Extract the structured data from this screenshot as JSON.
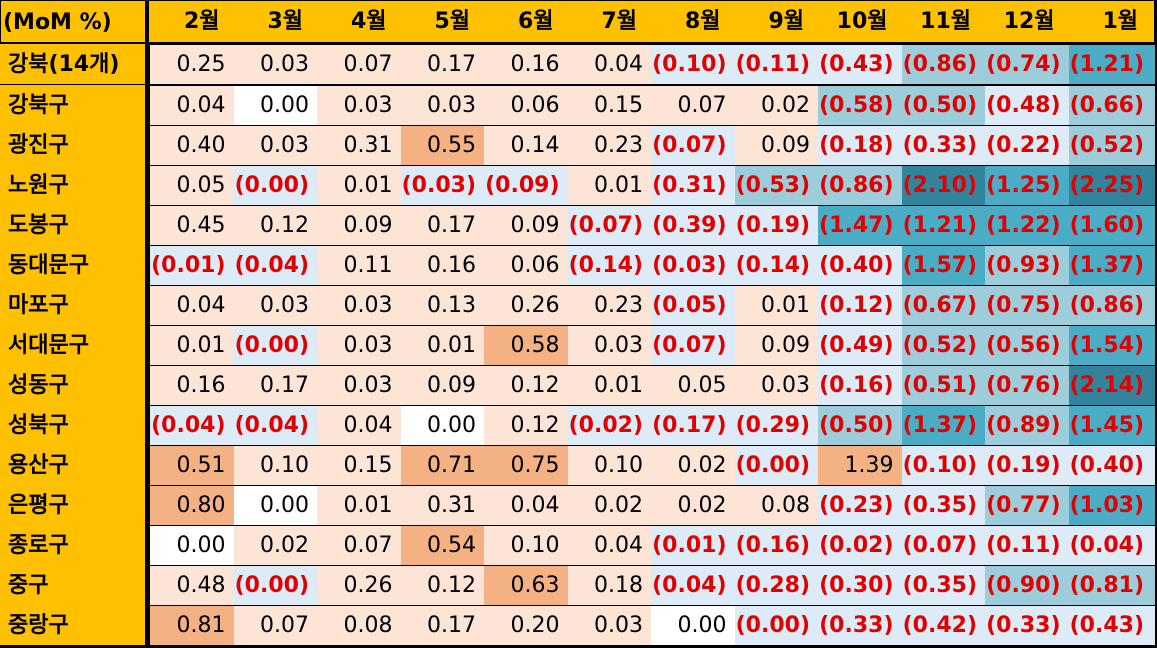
{
  "chart_data": {
    "type": "table",
    "corner_label": "(MoM %)",
    "columns": [
      "2월",
      "3월",
      "4월",
      "5월",
      "6월",
      "7월",
      "8월",
      "9월",
      "10월",
      "11월",
      "12월",
      "1월"
    ],
    "rows": [
      {
        "label": "강북(14개)",
        "cells": [
          {
            "text": "0.25",
            "value": 0.25
          },
          {
            "text": "0.03",
            "value": 0.03
          },
          {
            "text": "0.07",
            "value": 0.07
          },
          {
            "text": "0.17",
            "value": 0.17
          },
          {
            "text": "0.16",
            "value": 0.16
          },
          {
            "text": "0.04",
            "value": 0.04
          },
          {
            "text": "(0.10)",
            "value": -0.1
          },
          {
            "text": "(0.11)",
            "value": -0.11
          },
          {
            "text": "(0.43)",
            "value": -0.43
          },
          {
            "text": "(0.86)",
            "value": -0.86
          },
          {
            "text": "(0.74)",
            "value": -0.74
          },
          {
            "text": "(1.21)",
            "value": -1.21
          }
        ]
      },
      {
        "label": "강북구",
        "cells": [
          {
            "text": "0.04",
            "value": 0.04
          },
          {
            "text": "0.00",
            "value": 0.0
          },
          {
            "text": "0.03",
            "value": 0.03
          },
          {
            "text": "0.03",
            "value": 0.03
          },
          {
            "text": "0.06",
            "value": 0.06
          },
          {
            "text": "0.15",
            "value": 0.15
          },
          {
            "text": "0.07",
            "value": 0.07
          },
          {
            "text": "0.02",
            "value": 0.02
          },
          {
            "text": "(0.58)",
            "value": -0.58
          },
          {
            "text": "(0.50)",
            "value": -0.5
          },
          {
            "text": "(0.48)",
            "value": -0.48
          },
          {
            "text": "(0.66)",
            "value": -0.66
          }
        ]
      },
      {
        "label": "광진구",
        "cells": [
          {
            "text": "0.40",
            "value": 0.4
          },
          {
            "text": "0.03",
            "value": 0.03
          },
          {
            "text": "0.31",
            "value": 0.31
          },
          {
            "text": "0.55",
            "value": 0.55
          },
          {
            "text": "0.14",
            "value": 0.14
          },
          {
            "text": "0.23",
            "value": 0.23
          },
          {
            "text": "(0.07)",
            "value": -0.07
          },
          {
            "text": "0.09",
            "value": 0.09
          },
          {
            "text": "(0.18)",
            "value": -0.18
          },
          {
            "text": "(0.33)",
            "value": -0.33
          },
          {
            "text": "(0.22)",
            "value": -0.22
          },
          {
            "text": "(0.52)",
            "value": -0.52
          }
        ]
      },
      {
        "label": "노원구",
        "cells": [
          {
            "text": "0.05",
            "value": 0.05
          },
          {
            "text": "(0.00)",
            "value": -0.001
          },
          {
            "text": "0.01",
            "value": 0.01
          },
          {
            "text": "(0.03)",
            "value": -0.03
          },
          {
            "text": "(0.09)",
            "value": -0.09
          },
          {
            "text": "0.01",
            "value": 0.01
          },
          {
            "text": "(0.31)",
            "value": -0.31
          },
          {
            "text": "(0.53)",
            "value": -0.53
          },
          {
            "text": "(0.86)",
            "value": -0.86
          },
          {
            "text": "(2.10)",
            "value": -2.1
          },
          {
            "text": "(1.25)",
            "value": -1.25
          },
          {
            "text": "(2.25)",
            "value": -2.25
          }
        ]
      },
      {
        "label": "도봉구",
        "cells": [
          {
            "text": "0.45",
            "value": 0.45
          },
          {
            "text": "0.12",
            "value": 0.12
          },
          {
            "text": "0.09",
            "value": 0.09
          },
          {
            "text": "0.17",
            "value": 0.17
          },
          {
            "text": "0.09",
            "value": 0.09
          },
          {
            "text": "(0.07)",
            "value": -0.07
          },
          {
            "text": "(0.39)",
            "value": -0.39
          },
          {
            "text": "(0.19)",
            "value": -0.19
          },
          {
            "text": "(1.47)",
            "value": -1.47
          },
          {
            "text": "(1.21)",
            "value": -1.21
          },
          {
            "text": "(1.22)",
            "value": -1.22
          },
          {
            "text": "(1.60)",
            "value": -1.6
          }
        ]
      },
      {
        "label": "동대문구",
        "cells": [
          {
            "text": "(0.01)",
            "value": -0.01
          },
          {
            "text": "(0.04)",
            "value": -0.04
          },
          {
            "text": "0.11",
            "value": 0.11
          },
          {
            "text": "0.16",
            "value": 0.16
          },
          {
            "text": "0.06",
            "value": 0.06
          },
          {
            "text": "(0.14)",
            "value": -0.14
          },
          {
            "text": "(0.03)",
            "value": -0.03
          },
          {
            "text": "(0.14)",
            "value": -0.14
          },
          {
            "text": "(0.40)",
            "value": -0.4
          },
          {
            "text": "(1.57)",
            "value": -1.57
          },
          {
            "text": "(0.93)",
            "value": -0.93
          },
          {
            "text": "(1.37)",
            "value": -1.37
          }
        ]
      },
      {
        "label": "마포구",
        "cells": [
          {
            "text": "0.04",
            "value": 0.04
          },
          {
            "text": "0.03",
            "value": 0.03
          },
          {
            "text": "0.03",
            "value": 0.03
          },
          {
            "text": "0.13",
            "value": 0.13
          },
          {
            "text": "0.26",
            "value": 0.26
          },
          {
            "text": "0.23",
            "value": 0.23
          },
          {
            "text": "(0.05)",
            "value": -0.05
          },
          {
            "text": "0.01",
            "value": 0.01
          },
          {
            "text": "(0.12)",
            "value": -0.12
          },
          {
            "text": "(0.67)",
            "value": -0.67
          },
          {
            "text": "(0.75)",
            "value": -0.75
          },
          {
            "text": "(0.86)",
            "value": -0.86
          }
        ]
      },
      {
        "label": "서대문구",
        "cells": [
          {
            "text": "0.01",
            "value": 0.01
          },
          {
            "text": "(0.00)",
            "value": -0.001
          },
          {
            "text": "0.03",
            "value": 0.03
          },
          {
            "text": "0.01",
            "value": 0.01
          },
          {
            "text": "0.58",
            "value": 0.58
          },
          {
            "text": "0.03",
            "value": 0.03
          },
          {
            "text": "(0.07)",
            "value": -0.07
          },
          {
            "text": "0.09",
            "value": 0.09
          },
          {
            "text": "(0.49)",
            "value": -0.49
          },
          {
            "text": "(0.52)",
            "value": -0.52
          },
          {
            "text": "(0.56)",
            "value": -0.56
          },
          {
            "text": "(1.54)",
            "value": -1.54
          }
        ]
      },
      {
        "label": "성동구",
        "cells": [
          {
            "text": "0.16",
            "value": 0.16
          },
          {
            "text": "0.17",
            "value": 0.17
          },
          {
            "text": "0.03",
            "value": 0.03
          },
          {
            "text": "0.09",
            "value": 0.09
          },
          {
            "text": "0.12",
            "value": 0.12
          },
          {
            "text": "0.01",
            "value": 0.01
          },
          {
            "text": "0.05",
            "value": 0.05
          },
          {
            "text": "0.03",
            "value": 0.03
          },
          {
            "text": "(0.16)",
            "value": -0.16
          },
          {
            "text": "(0.51)",
            "value": -0.51
          },
          {
            "text": "(0.76)",
            "value": -0.76
          },
          {
            "text": "(2.14)",
            "value": -2.14
          }
        ]
      },
      {
        "label": "성북구",
        "cells": [
          {
            "text": "(0.04)",
            "value": -0.04
          },
          {
            "text": "(0.04)",
            "value": -0.04
          },
          {
            "text": "0.04",
            "value": 0.04
          },
          {
            "text": "0.00",
            "value": 0.0
          },
          {
            "text": "0.12",
            "value": 0.12
          },
          {
            "text": "(0.02)",
            "value": -0.02
          },
          {
            "text": "(0.17)",
            "value": -0.17
          },
          {
            "text": "(0.29)",
            "value": -0.29
          },
          {
            "text": "(0.50)",
            "value": -0.5
          },
          {
            "text": "(1.37)",
            "value": -1.37
          },
          {
            "text": "(0.89)",
            "value": -0.89
          },
          {
            "text": "(1.45)",
            "value": -1.45
          }
        ]
      },
      {
        "label": "용산구",
        "cells": [
          {
            "text": "0.51",
            "value": 0.51
          },
          {
            "text": "0.10",
            "value": 0.1
          },
          {
            "text": "0.15",
            "value": 0.15
          },
          {
            "text": "0.71",
            "value": 0.71
          },
          {
            "text": "0.75",
            "value": 0.75
          },
          {
            "text": "0.10",
            "value": 0.1
          },
          {
            "text": "0.02",
            "value": 0.02
          },
          {
            "text": "(0.00)",
            "value": -0.001
          },
          {
            "text": "1.39",
            "value": 1.39
          },
          {
            "text": "(0.10)",
            "value": -0.1
          },
          {
            "text": "(0.19)",
            "value": -0.19
          },
          {
            "text": "(0.40)",
            "value": -0.4
          }
        ]
      },
      {
        "label": "은평구",
        "cells": [
          {
            "text": "0.80",
            "value": 0.8
          },
          {
            "text": "0.00",
            "value": 0.0
          },
          {
            "text": "0.01",
            "value": 0.01
          },
          {
            "text": "0.31",
            "value": 0.31
          },
          {
            "text": "0.04",
            "value": 0.04
          },
          {
            "text": "0.02",
            "value": 0.02
          },
          {
            "text": "0.02",
            "value": 0.02
          },
          {
            "text": "0.08",
            "value": 0.08
          },
          {
            "text": "(0.23)",
            "value": -0.23
          },
          {
            "text": "(0.35)",
            "value": -0.35
          },
          {
            "text": "(0.77)",
            "value": -0.77
          },
          {
            "text": "(1.03)",
            "value": -1.03
          }
        ]
      },
      {
        "label": "종로구",
        "cells": [
          {
            "text": "0.00",
            "value": 0.0
          },
          {
            "text": "0.02",
            "value": 0.02
          },
          {
            "text": "0.07",
            "value": 0.07
          },
          {
            "text": "0.54",
            "value": 0.54
          },
          {
            "text": "0.10",
            "value": 0.1
          },
          {
            "text": "0.04",
            "value": 0.04
          },
          {
            "text": "(0.01)",
            "value": -0.01
          },
          {
            "text": "(0.16)",
            "value": -0.16
          },
          {
            "text": "(0.02)",
            "value": -0.02
          },
          {
            "text": "(0.07)",
            "value": -0.07
          },
          {
            "text": "(0.11)",
            "value": -0.11
          },
          {
            "text": "(0.04)",
            "value": -0.04
          }
        ]
      },
      {
        "label": "중구",
        "cells": [
          {
            "text": "0.48",
            "value": 0.48
          },
          {
            "text": "(0.00)",
            "value": -0.001
          },
          {
            "text": "0.26",
            "value": 0.26
          },
          {
            "text": "0.12",
            "value": 0.12
          },
          {
            "text": "0.63",
            "value": 0.63
          },
          {
            "text": "0.18",
            "value": 0.18
          },
          {
            "text": "(0.04)",
            "value": -0.04
          },
          {
            "text": "(0.28)",
            "value": -0.28
          },
          {
            "text": "(0.30)",
            "value": -0.3
          },
          {
            "text": "(0.35)",
            "value": -0.35
          },
          {
            "text": "(0.90)",
            "value": -0.9
          },
          {
            "text": "(0.81)",
            "value": -0.81
          }
        ]
      },
      {
        "label": "중랑구",
        "cells": [
          {
            "text": "0.81",
            "value": 0.81
          },
          {
            "text": "0.07",
            "value": 0.07
          },
          {
            "text": "0.08",
            "value": 0.08
          },
          {
            "text": "0.17",
            "value": 0.17
          },
          {
            "text": "0.20",
            "value": 0.2
          },
          {
            "text": "0.03",
            "value": 0.03
          },
          {
            "text": "0.00",
            "value": 0.0
          },
          {
            "text": "(0.00)",
            "value": -0.001
          },
          {
            "text": "(0.33)",
            "value": -0.33
          },
          {
            "text": "(0.42)",
            "value": -0.42
          },
          {
            "text": "(0.33)",
            "value": -0.33
          },
          {
            "text": "(0.43)",
            "value": -0.43
          }
        ]
      }
    ],
    "colors": {
      "header_bg": "#FFC000",
      "negative_text": "#E00000",
      "positive_text": "#000000",
      "neutral_bg": "#FFFFFF",
      "positive_light": "#FCE4D6",
      "positive_strong": "#F4B183",
      "negative_light": "#DDEBF7",
      "negative_mid": "#9DCDDB",
      "negative_strong": "#4BACC6",
      "negative_darkest": "#31849B"
    }
  }
}
